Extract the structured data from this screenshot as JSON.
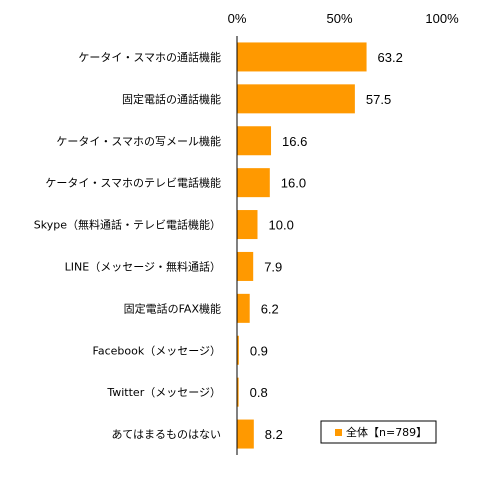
{
  "chart_data": {
    "type": "bar",
    "orientation": "horizontal",
    "categories": [
      "ケータイ・スマホの通話機能",
      "固定電話の通話機能",
      "ケータイ・スマホの写メール機能",
      "ケータイ・スマホのテレビ電話機能",
      "Skype（無料通話・テレビ電話機能）",
      "LINE（メッセージ・無料通話）",
      "固定電話のFAX機能",
      "Facebook（メッセージ）",
      "Twitter（メッセージ）",
      "あてはまるものはない"
    ],
    "series": [
      {
        "name": "全体【n=789】",
        "values": [
          63.2,
          57.5,
          16.6,
          16.0,
          10.0,
          7.9,
          6.2,
          0.9,
          0.8,
          8.2
        ],
        "labels": [
          "63.2",
          "57.5",
          "16.6",
          "16.0",
          "10.0",
          "7.9",
          "6.2",
          "0.9",
          "0.8",
          "8.2"
        ]
      }
    ],
    "xlim": [
      0,
      100
    ],
    "x_ticks": [
      "0%",
      "50%",
      "100%"
    ],
    "x_tick_values": [
      0,
      50,
      100
    ],
    "grid": false,
    "legend_position": "bottom-right",
    "colors": {
      "bar": "#FF9900",
      "axis": "#000000",
      "legend_border": "#000000"
    }
  }
}
